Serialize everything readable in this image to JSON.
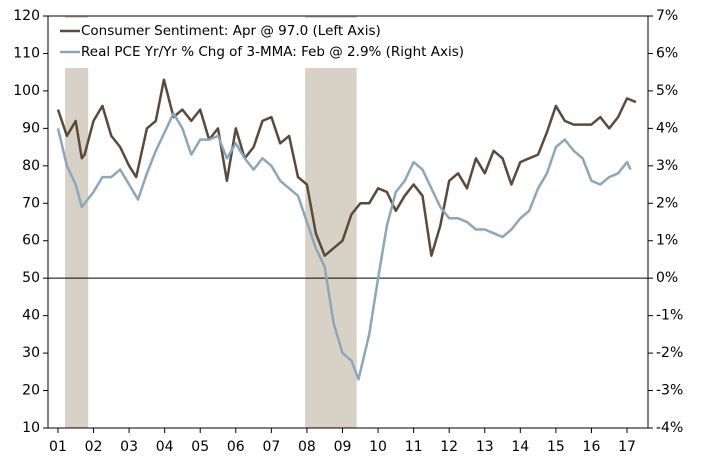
{
  "chart_data": {
    "type": "line",
    "xlim": [
      2000.72,
      2017.59
    ],
    "xticks": [
      {
        "value": 2001,
        "label": "01"
      },
      {
        "value": 2002,
        "label": "02"
      },
      {
        "value": 2003,
        "label": "03"
      },
      {
        "value": 2004,
        "label": "04"
      },
      {
        "value": 2005,
        "label": "05"
      },
      {
        "value": 2006,
        "label": "06"
      },
      {
        "value": 2007,
        "label": "07"
      },
      {
        "value": 2008,
        "label": "08"
      },
      {
        "value": 2009,
        "label": "09"
      },
      {
        "value": 2010,
        "label": "10"
      },
      {
        "value": 2011,
        "label": "11"
      },
      {
        "value": 2012,
        "label": "12"
      },
      {
        "value": 2013,
        "label": "13"
      },
      {
        "value": 2014,
        "label": "14"
      },
      {
        "value": 2015,
        "label": "15"
      },
      {
        "value": 2016,
        "label": "16"
      },
      {
        "value": 2017,
        "label": "17"
      }
    ],
    "ylim": [
      10,
      120
    ],
    "yticks": [
      10,
      20,
      30,
      40,
      50,
      60,
      70,
      80,
      90,
      100,
      110,
      120
    ],
    "y2lim": [
      -4,
      7
    ],
    "y2ticks": [
      {
        "value": -4,
        "label": "-4%"
      },
      {
        "value": -3,
        "label": "-3%"
      },
      {
        "value": -2,
        "label": "-2%"
      },
      {
        "value": -1,
        "label": "-1%"
      },
      {
        "value": 0,
        "label": "0%"
      },
      {
        "value": 1,
        "label": "1%"
      },
      {
        "value": 2,
        "label": "2%"
      },
      {
        "value": 3,
        "label": "3%"
      },
      {
        "value": 4,
        "label": "4%"
      },
      {
        "value": 5,
        "label": "5%"
      },
      {
        "value": 6,
        "label": "6%"
      },
      {
        "value": 7,
        "label": "7%"
      }
    ],
    "reference_line": 50,
    "shaded_periods": [
      [
        2001.2,
        2001.85
      ],
      [
        2007.95,
        2009.4
      ]
    ],
    "shade_color": "#d8d2c6",
    "legend": "top-left",
    "series": [
      {
        "name": "Consumer Sentiment: Apr @ 97.0 (Left Axis)",
        "color": "#5b4a3b",
        "axis": "y",
        "x": [
          2001.0,
          2001.25,
          2001.5,
          2001.67,
          2001.75,
          2002.0,
          2002.25,
          2002.5,
          2002.75,
          2003.0,
          2003.2,
          2003.5,
          2003.75,
          2003.98,
          2004.25,
          2004.5,
          2004.75,
          2005.0,
          2005.25,
          2005.5,
          2005.75,
          2006.0,
          2006.25,
          2006.5,
          2006.75,
          2007.0,
          2007.25,
          2007.5,
          2007.75,
          2008.0,
          2008.25,
          2008.5,
          2008.75,
          2009.0,
          2009.25,
          2009.5,
          2009.75,
          2010.0,
          2010.25,
          2010.5,
          2010.75,
          2011.0,
          2011.25,
          2011.5,
          2011.75,
          2012.0,
          2012.25,
          2012.5,
          2012.75,
          2013.0,
          2013.25,
          2013.5,
          2013.75,
          2014.0,
          2014.25,
          2014.5,
          2014.75,
          2015.0,
          2015.25,
          2015.5,
          2015.75,
          2016.0,
          2016.25,
          2016.5,
          2016.75,
          2017.0,
          2017.25
        ],
        "values": [
          95,
          88,
          92,
          82,
          83,
          92,
          96,
          88,
          85,
          80,
          77,
          90,
          92,
          103,
          93,
          95,
          92,
          95,
          87,
          90,
          76,
          90,
          82,
          85,
          92,
          93,
          86,
          88,
          77,
          75,
          62,
          56,
          58,
          60,
          67,
          70,
          70,
          74,
          73,
          68,
          72,
          75,
          72,
          56,
          64,
          76,
          78,
          74,
          82,
          78,
          84,
          82,
          75,
          81,
          82,
          83,
          89,
          96,
          92,
          91,
          91,
          91,
          93,
          90,
          93,
          98,
          97
        ]
      },
      {
        "name": "Real PCE Yr/Yr % Chg of 3-MMA: Feb @ 2.9% (Right Axis)",
        "color": "#8ba7b9",
        "axis": "y2",
        "x": [
          2001.0,
          2001.25,
          2001.5,
          2001.67,
          2002.0,
          2002.25,
          2002.5,
          2002.75,
          2003.0,
          2003.25,
          2003.5,
          2003.75,
          2004.0,
          2004.25,
          2004.5,
          2004.75,
          2005.0,
          2005.25,
          2005.5,
          2005.75,
          2006.0,
          2006.25,
          2006.5,
          2006.75,
          2007.0,
          2007.25,
          2007.5,
          2007.75,
          2008.0,
          2008.25,
          2008.5,
          2008.75,
          2009.0,
          2009.25,
          2009.45,
          2009.75,
          2010.0,
          2010.25,
          2010.5,
          2010.75,
          2011.0,
          2011.25,
          2011.5,
          2011.75,
          2012.0,
          2012.25,
          2012.5,
          2012.75,
          2013.0,
          2013.25,
          2013.5,
          2013.75,
          2014.0,
          2014.25,
          2014.5,
          2014.75,
          2015.0,
          2015.25,
          2015.5,
          2015.75,
          2016.0,
          2016.25,
          2016.5,
          2016.75,
          2017.0,
          2017.1
        ],
        "values": [
          4.0,
          3.0,
          2.5,
          1.9,
          2.3,
          2.7,
          2.7,
          2.9,
          2.5,
          2.1,
          2.8,
          3.4,
          3.9,
          4.4,
          4.0,
          3.3,
          3.7,
          3.7,
          3.8,
          3.2,
          3.6,
          3.2,
          2.9,
          3.2,
          3.0,
          2.6,
          2.4,
          2.2,
          1.5,
          0.8,
          0.3,
          -1.2,
          -2.0,
          -2.2,
          -2.7,
          -1.5,
          0.0,
          1.4,
          2.3,
          2.6,
          3.1,
          2.9,
          2.4,
          1.9,
          1.6,
          1.6,
          1.5,
          1.3,
          1.3,
          1.2,
          1.1,
          1.3,
          1.6,
          1.8,
          2.4,
          2.8,
          3.5,
          3.7,
          3.4,
          3.2,
          2.6,
          2.5,
          2.7,
          2.8,
          3.1,
          2.9
        ]
      }
    ]
  }
}
